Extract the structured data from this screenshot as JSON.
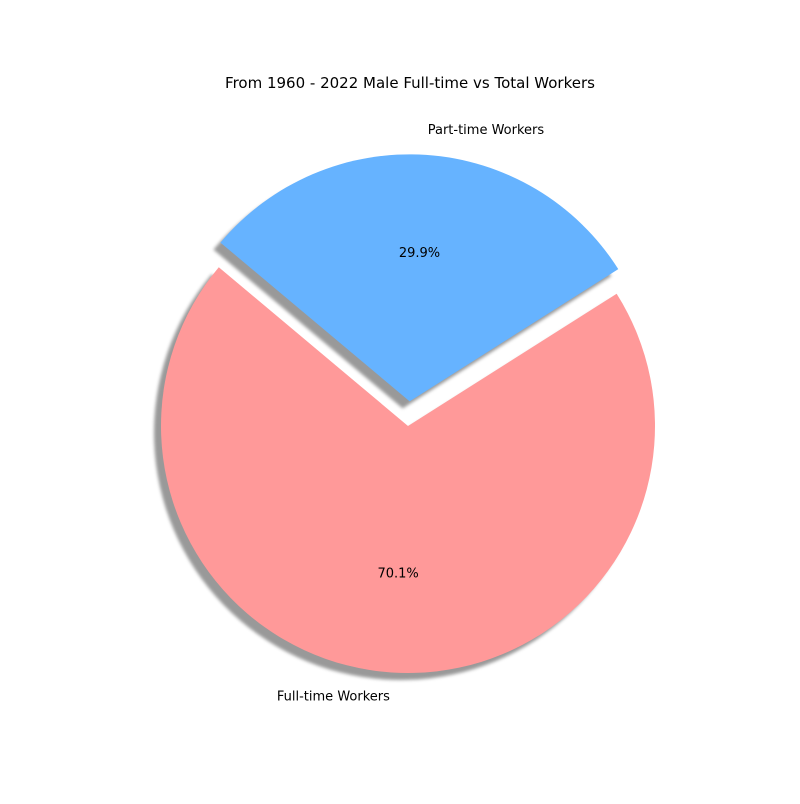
{
  "chart_data": {
    "type": "pie",
    "title": "From 1960 - 2022 Male Full-time vs Total Workers",
    "slices": [
      {
        "label": "Full-time Workers",
        "percent": 70.1,
        "percent_label": "70.1%",
        "color": "#ff9999",
        "exploded": false
      },
      {
        "label": "Part-time Workers",
        "percent": 29.9,
        "percent_label": "29.9%",
        "color": "#66b3ff",
        "exploded": true
      }
    ],
    "shadow": true,
    "legend": "none"
  }
}
